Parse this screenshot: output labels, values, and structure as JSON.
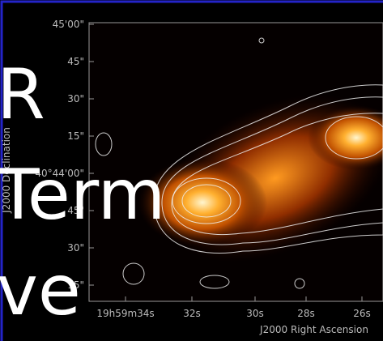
{
  "plot": {
    "y_ticks": [
      "45'00\"",
      "45\"",
      "30\"",
      "15\"",
      "40°44'00\"",
      "45\"",
      "30\"",
      "15\""
    ],
    "x_ticks": [
      "19h59m34s",
      "32s",
      "30s",
      "28s",
      "26s"
    ],
    "x_label": "J2000 Right Ascension",
    "y_label": "J2000 Declination"
  },
  "overlay": {
    "lines": [
      "R",
      "Term",
      "ve"
    ]
  }
}
